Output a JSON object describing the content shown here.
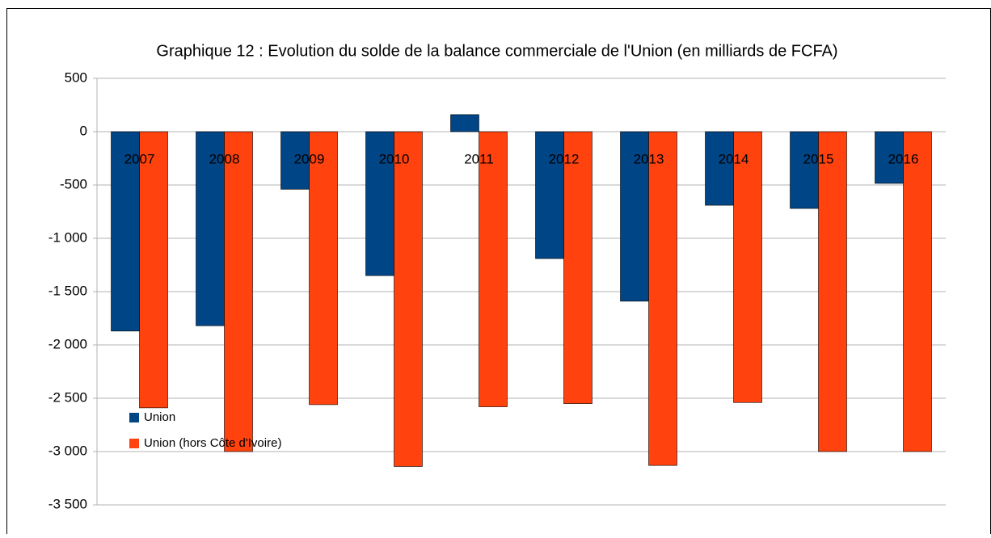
{
  "chart_data": {
    "type": "bar",
    "title": "Graphique 12  : Evolution du solde de la balance commerciale de l'Union (en milliards de FCFA)",
    "categories": [
      "2007",
      "2008",
      "2009",
      "2010",
      "2011",
      "2012",
      "2013",
      "2014",
      "2015",
      "2016"
    ],
    "series": [
      {
        "name": "Union",
        "color": "#004586",
        "values": [
          -1870,
          -1820,
          -540,
          -1350,
          160,
          -1190,
          -1590,
          -690,
          -720,
          -485
        ]
      },
      {
        "name": "Union (hors Côte d'Ivoire)",
        "color": "#ff420e",
        "values": [
          -2590,
          -3000,
          -2560,
          -3140,
          -2580,
          -2550,
          -3130,
          -2540,
          -3000,
          -3000
        ]
      }
    ],
    "ylim": [
      -3500,
      500
    ],
    "yticks": [
      500,
      0,
      -500,
      {
        "value": -1000,
        "label": "-1 000"
      },
      {
        "value": -1500,
        "label": "-1 500"
      },
      {
        "value": -2000,
        "label": "-2 000"
      },
      {
        "value": -2500,
        "label": "-2 500"
      },
      {
        "value": -3000,
        "label": "-3 000"
      },
      {
        "value": -3500,
        "label": "-3 500"
      }
    ],
    "grid": true,
    "legend": "bottom-left"
  }
}
